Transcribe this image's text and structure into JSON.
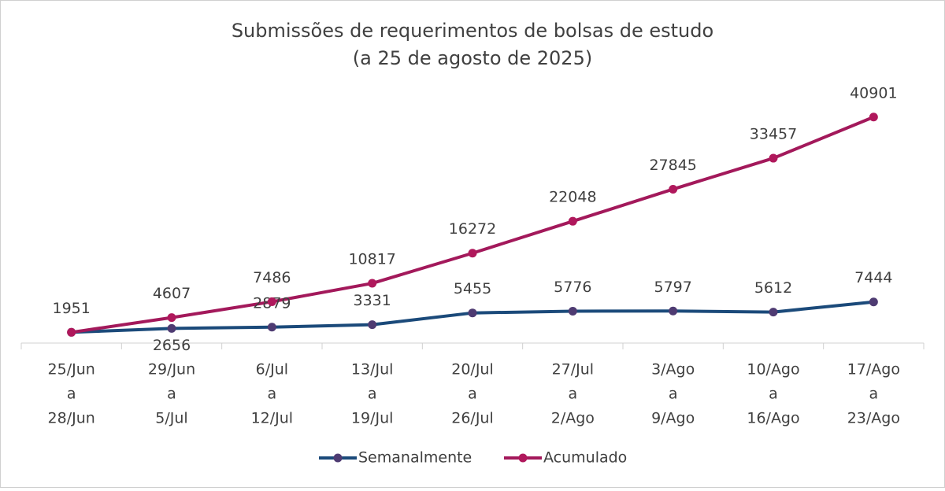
{
  "chart_data": {
    "type": "line",
    "title": "Submissões de requerimentos de bolsas de estudo",
    "subtitle": "(a 25 de agosto de 2025)",
    "categories": [
      [
        "25/Jun",
        "a",
        "28/Jun"
      ],
      [
        "29/Jun",
        "a",
        "5/Jul"
      ],
      [
        "6/Jul",
        "a",
        "12/Jul"
      ],
      [
        "13/Jul",
        "a",
        "19/Jul"
      ],
      [
        "20/Jul",
        "a",
        "26/Jul"
      ],
      [
        "27/Jul",
        "a",
        "2/Ago"
      ],
      [
        "3/Ago",
        "a",
        "9/Ago"
      ],
      [
        "10/Ago",
        "a",
        "16/Ago"
      ],
      [
        "17/Ago",
        "a",
        "23/Ago"
      ]
    ],
    "series": [
      {
        "name": "Semanalmente",
        "color": "#1b4a7a",
        "marker_color": "#4e3b72",
        "values": [
          1951,
          2656,
          2879,
          3331,
          5455,
          5776,
          5797,
          5612,
          7444
        ]
      },
      {
        "name": "Acumulado",
        "color": "#a3195b",
        "marker_color": "#b0185c",
        "values": [
          1951,
          4607,
          7486,
          10817,
          16272,
          22048,
          27845,
          33457,
          40901
        ]
      }
    ],
    "ylim": [
      0,
      45000
    ],
    "legend": "bottom"
  }
}
